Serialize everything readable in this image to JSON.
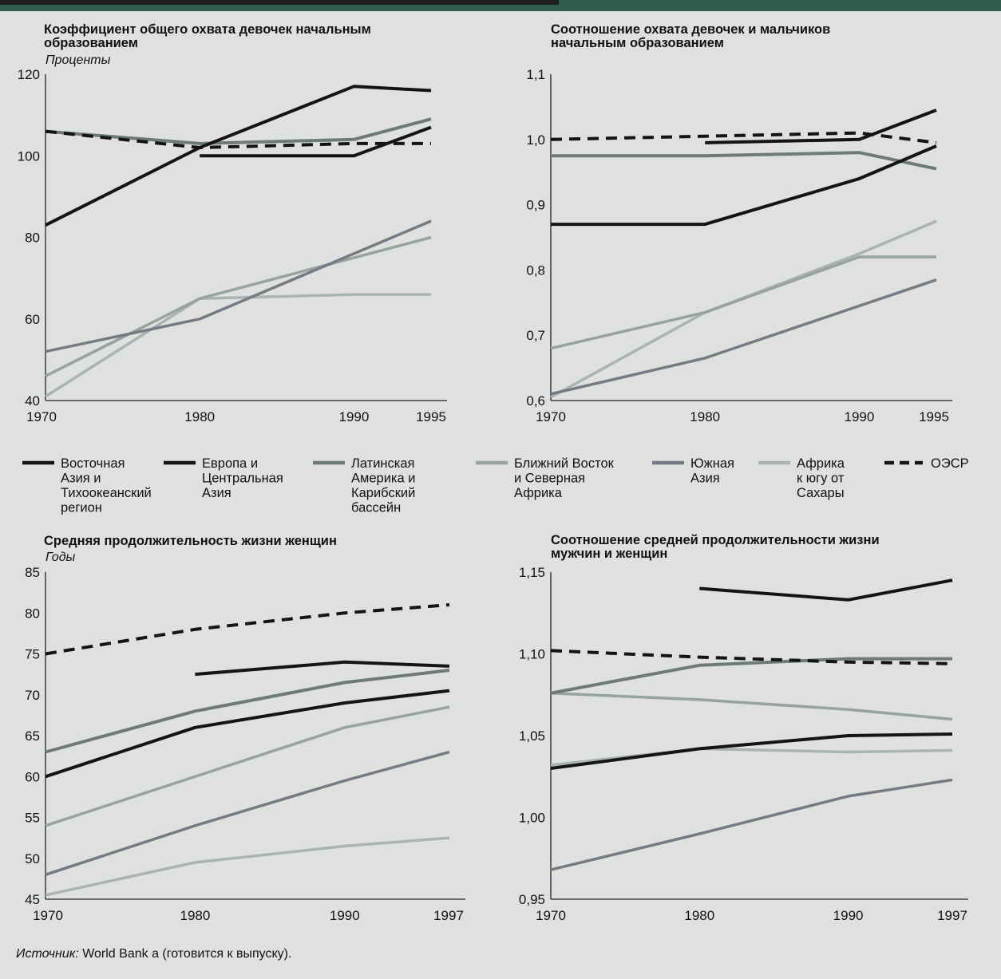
{
  "source": {
    "label": "Источник:",
    "text": " World Bank a (готовится к выпуску)."
  },
  "colors": {
    "East Asia": "#141414",
    "Europe": "#141414",
    "LatAm": "#6e7a76",
    "MENA": "#97a39f",
    "SouthAsia": "#777a82",
    "SSA": "#a9b3b0",
    "OECD": "#141414"
  },
  "legend": [
    {
      "key": "East Asia",
      "lines": [
        "Восточная",
        "Азия и",
        "Тихоокеанский",
        "регион"
      ],
      "dashed": false
    },
    {
      "key": "Europe",
      "lines": [
        "Европа и",
        "Центральная",
        "Азия"
      ],
      "dashed": false
    },
    {
      "key": "LatAm",
      "lines": [
        "Латинская",
        "Америка и",
        "Карибский",
        "бассейн"
      ],
      "dashed": false
    },
    {
      "key": "MENA",
      "lines": [
        "Ближний Восток",
        "и Северная",
        "Африка"
      ],
      "dashed": false
    },
    {
      "key": "SouthAsia",
      "lines": [
        "Южная",
        "Азия"
      ],
      "dashed": false
    },
    {
      "key": "SSA",
      "lines": [
        "Африка",
        "к югу от",
        "Сахары"
      ],
      "dashed": false
    },
    {
      "key": "OECD",
      "lines": [
        "ОЭСР"
      ],
      "dashed": true
    }
  ],
  "chart_data": [
    {
      "type": "line",
      "title": [
        "Коэффициент общего охвата девочек начальным",
        "образованием"
      ],
      "unit": "Проценты",
      "x_ticks": [
        "1970",
        "1980",
        "1990",
        "1995"
      ],
      "y_ticks": [
        "120",
        "100",
        "80",
        "60",
        "40"
      ],
      "ylim": [
        40,
        120
      ],
      "xlim": [
        1970,
        1995
      ],
      "series": [
        {
          "key": "East Asia",
          "x": [
            1970,
            1980,
            1990,
            1995
          ],
          "values": [
            83,
            102,
            117,
            116
          ]
        },
        {
          "key": "Europe",
          "x": [
            1980,
            1990,
            1995
          ],
          "values": [
            100,
            100,
            107
          ]
        },
        {
          "key": "LatAm",
          "x": [
            1970,
            1980,
            1990,
            1995
          ],
          "values": [
            106,
            103,
            104,
            109
          ]
        },
        {
          "key": "OECD",
          "x": [
            1970,
            1980,
            1990,
            1995
          ],
          "values": [
            106,
            102,
            103,
            103
          ]
        },
        {
          "key": "MENA",
          "x": [
            1970,
            1980,
            1990,
            1995
          ],
          "values": [
            46,
            65,
            75,
            80
          ]
        },
        {
          "key": "SouthAsia",
          "x": [
            1970,
            1980,
            1990,
            1995
          ],
          "values": [
            52,
            60,
            76,
            84
          ]
        },
        {
          "key": "SSA",
          "x": [
            1970,
            1980,
            1990,
            1995
          ],
          "values": [
            41,
            65,
            66,
            66
          ]
        }
      ]
    },
    {
      "type": "line",
      "title": [
        "Соотношение охвата девочек и мальчиков",
        "начальным образованием"
      ],
      "unit": "",
      "x_ticks": [
        "1970",
        "1980",
        "1990",
        "1995"
      ],
      "y_ticks": [
        "1,1",
        "1,0",
        "0,9",
        "0,8",
        "0,7",
        "0,6"
      ],
      "ylim": [
        0.6,
        1.1
      ],
      "xlim": [
        1970,
        1995
      ],
      "series": [
        {
          "key": "East Asia",
          "x": [
            1970,
            1980,
            1990,
            1995
          ],
          "values": [
            0.87,
            0.87,
            0.94,
            0.99
          ]
        },
        {
          "key": "Europe",
          "x": [
            1980,
            1990,
            1995
          ],
          "values": [
            0.995,
            1.0,
            1.045
          ]
        },
        {
          "key": "LatAm",
          "x": [
            1970,
            1980,
            1990,
            1995
          ],
          "values": [
            0.975,
            0.975,
            0.98,
            0.955
          ]
        },
        {
          "key": "OECD",
          "x": [
            1970,
            1980,
            1990,
            1995
          ],
          "values": [
            1.0,
            1.005,
            1.01,
            0.995
          ]
        },
        {
          "key": "MENA",
          "x": [
            1970,
            1980,
            1990,
            1995
          ],
          "values": [
            0.68,
            0.735,
            0.82,
            0.82
          ]
        },
        {
          "key": "SouthAsia",
          "x": [
            1970,
            1980,
            1990,
            1995
          ],
          "values": [
            0.61,
            0.665,
            0.745,
            0.785
          ]
        },
        {
          "key": "SSA",
          "x": [
            1970,
            1980,
            1990,
            1995
          ],
          "values": [
            0.605,
            0.735,
            0.825,
            0.875
          ]
        }
      ]
    },
    {
      "type": "line",
      "title": [
        "Средняя продолжительность жизни женщин"
      ],
      "unit": "Годы",
      "x_ticks": [
        "1970",
        "1980",
        "1990",
        "1997"
      ],
      "y_ticks": [
        "85",
        "80",
        "75",
        "70",
        "65",
        "60",
        "55",
        "50",
        "45"
      ],
      "ylim": [
        45,
        85
      ],
      "xlim": [
        1970,
        1997
      ],
      "series": [
        {
          "key": "OECD",
          "x": [
            1970,
            1980,
            1990,
            1997
          ],
          "values": [
            75,
            78,
            80,
            81
          ]
        },
        {
          "key": "Europe",
          "x": [
            1980,
            1990,
            1997
          ],
          "values": [
            72.5,
            74,
            73.5
          ]
        },
        {
          "key": "LatAm",
          "x": [
            1970,
            1980,
            1990,
            1997
          ],
          "values": [
            63,
            68,
            71.5,
            73
          ]
        },
        {
          "key": "East Asia",
          "x": [
            1970,
            1980,
            1990,
            1997
          ],
          "values": [
            60,
            66,
            69,
            70.5
          ]
        },
        {
          "key": "MENA",
          "x": [
            1970,
            1980,
            1990,
            1997
          ],
          "values": [
            54,
            60,
            66,
            68.5
          ]
        },
        {
          "key": "SouthAsia",
          "x": [
            1970,
            1980,
            1990,
            1997
          ],
          "values": [
            48,
            54,
            59.5,
            63
          ]
        },
        {
          "key": "SSA",
          "x": [
            1970,
            1980,
            1990,
            1997
          ],
          "values": [
            45.5,
            49.5,
            51.5,
            52.5
          ]
        }
      ]
    },
    {
      "type": "line",
      "title": [
        "Соотношение средней продолжительности жизни",
        "мужчин и женщин"
      ],
      "unit": "",
      "x_ticks": [
        "1970",
        "1980",
        "1990",
        "1997"
      ],
      "y_ticks": [
        "1,15",
        "1,10",
        "1,05",
        "1,00",
        "0,95"
      ],
      "ylim": [
        0.95,
        1.15
      ],
      "xlim": [
        1970,
        1997
      ],
      "series": [
        {
          "key": "Europe",
          "x": [
            1980,
            1990,
            1997
          ],
          "values": [
            1.14,
            1.133,
            1.145
          ]
        },
        {
          "key": "OECD",
          "x": [
            1970,
            1980,
            1990,
            1997
          ],
          "values": [
            1.102,
            1.098,
            1.095,
            1.094
          ]
        },
        {
          "key": "LatAm",
          "x": [
            1970,
            1980,
            1990,
            1997
          ],
          "values": [
            1.076,
            1.093,
            1.097,
            1.097
          ]
        },
        {
          "key": "MENA",
          "x": [
            1970,
            1980,
            1990,
            1997
          ],
          "values": [
            1.076,
            1.072,
            1.066,
            1.06
          ]
        },
        {
          "key": "East Asia",
          "x": [
            1970,
            1980,
            1990,
            1997
          ],
          "values": [
            1.03,
            1.042,
            1.05,
            1.051
          ]
        },
        {
          "key": "SSA",
          "x": [
            1970,
            1980,
            1990,
            1997
          ],
          "values": [
            1.032,
            1.042,
            1.04,
            1.041
          ]
        },
        {
          "key": "SouthAsia",
          "x": [
            1970,
            1980,
            1990,
            1997
          ],
          "values": [
            0.968,
            0.99,
            1.013,
            1.023
          ]
        }
      ]
    }
  ]
}
